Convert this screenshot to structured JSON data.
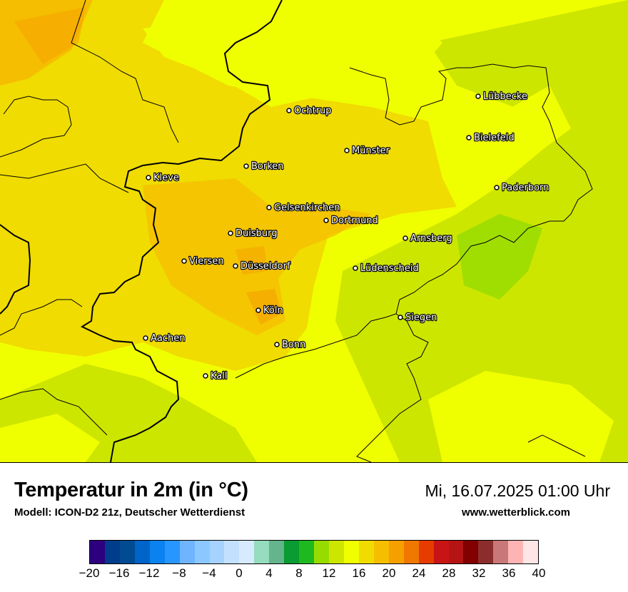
{
  "map": {
    "cities": [
      {
        "name": "Ochtrup"
      },
      {
        "name": "Lübbecke"
      },
      {
        "name": "Bielefeld"
      },
      {
        "name": "Münster"
      },
      {
        "name": "Borken"
      },
      {
        "name": "Kleve"
      },
      {
        "name": "Paderborn"
      },
      {
        "name": "Gelsenkirchen"
      },
      {
        "name": "Dortmund"
      },
      {
        "name": "Duisburg"
      },
      {
        "name": "Arnsberg"
      },
      {
        "name": "Viersen"
      },
      {
        "name": "Düsseldorf"
      },
      {
        "name": "Lüdenscheid"
      },
      {
        "name": "Köln"
      },
      {
        "name": "Siegen"
      },
      {
        "name": "Aachen"
      },
      {
        "name": "Bonn"
      },
      {
        "name": "Kall"
      }
    ]
  },
  "footer": {
    "title": "Temperatur in 2m (in °C)",
    "model": "Modell: ICON-D2 21z, Deutscher Wetterdienst",
    "datetime": "Mi, 16.07.2025 01:00 Uhr",
    "website": "www.wetterblick.com"
  },
  "legend": {
    "ticks": [
      "−20",
      "−16",
      "−12",
      "−8",
      "−4",
      "0",
      "4",
      "8",
      "12",
      "16",
      "20",
      "24",
      "28",
      "32",
      "36",
      "40"
    ],
    "min": -20,
    "max": 40,
    "colors": [
      "#2d0080",
      "#003c8c",
      "#004b91",
      "#0064c8",
      "#0a82f0",
      "#2896ff",
      "#6eb4ff",
      "#8cc8ff",
      "#a5d2ff",
      "#c3e1ff",
      "#d7ebff",
      "#96dcbe",
      "#64b48c",
      "#0a9b32",
      "#1eb91e",
      "#96dc00",
      "#cde600",
      "#f0ff00",
      "#f0dc00",
      "#f5be00",
      "#f5a000",
      "#f07800",
      "#e63c00",
      "#c81414",
      "#b41414",
      "#820000",
      "#8c2d2d",
      "#c87878",
      "#ffb4b4",
      "#ffe6e6"
    ]
  }
}
